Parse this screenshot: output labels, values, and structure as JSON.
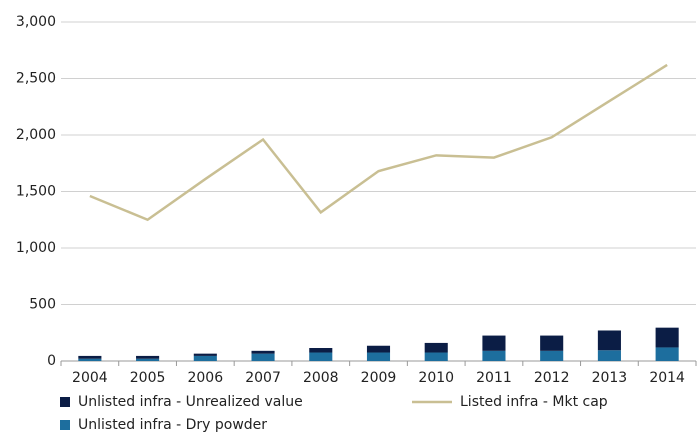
{
  "chart_data": {
    "type": "bar",
    "stacked": true,
    "categories": [
      "2004",
      "2005",
      "2006",
      "2007",
      "2008",
      "2009",
      "2010",
      "2011",
      "2012",
      "2013",
      "2014"
    ],
    "series": [
      {
        "name": "Unlisted infra - Dry powder",
        "type": "bar",
        "color": "#1d6e9e",
        "values": [
          20,
          20,
          45,
          65,
          75,
          75,
          75,
          90,
          90,
          95,
          120
        ]
      },
      {
        "name": "Unlisted infra - Unrealized value",
        "type": "bar",
        "color": "#0b1d45",
        "values": [
          25,
          25,
          20,
          25,
          40,
          60,
          85,
          135,
          135,
          175,
          175
        ]
      },
      {
        "name": "Listed infra - Mkt cap",
        "type": "line",
        "color": "#c9bf93",
        "values": [
          1460,
          1250,
          1610,
          1960,
          1315,
          1680,
          1820,
          1800,
          1980,
          2300,
          2620
        ]
      }
    ],
    "ylim": [
      0,
      3000
    ],
    "yticks": [
      0,
      500,
      {
        "value": 1000,
        "label": "1,000"
      },
      {
        "value": 1500,
        "label": "1,500"
      },
      {
        "value": 2000,
        "label": "2,000"
      },
      {
        "value": 2500,
        "label": "2,500"
      },
      {
        "value": 3000,
        "label": "3,000"
      }
    ],
    "grid": true
  }
}
